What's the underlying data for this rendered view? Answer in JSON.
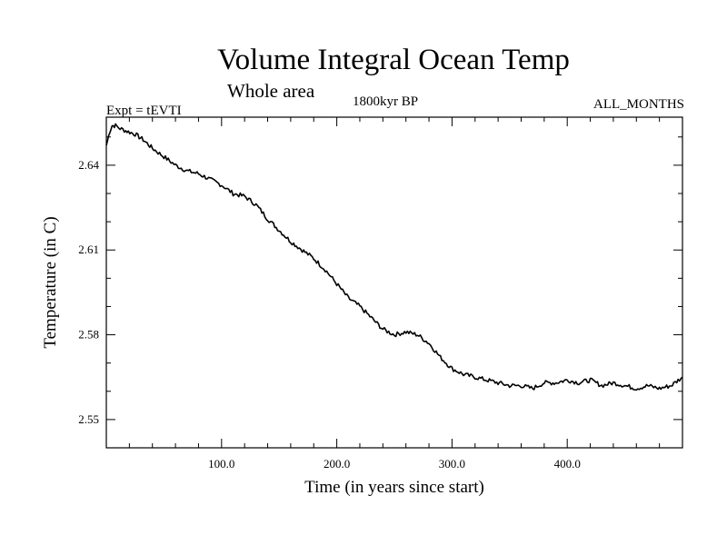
{
  "chart_data": {
    "type": "line",
    "title": "Volume Integral Ocean Temp",
    "subtitle": "Whole area",
    "experiment": "Expt = tEVTI",
    "period": "1800kyr BP",
    "months": "ALL_MONTHS",
    "xlabel": "Time (in years since start)",
    "ylabel": "Temperature (in C)",
    "xlim": [
      0,
      500
    ],
    "ylim": [
      2.54,
      2.657
    ],
    "xticks": [
      100,
      200,
      300,
      400
    ],
    "xtick_labels": [
      "100.0",
      "200.0",
      "300.0",
      "400.0"
    ],
    "yticks": [
      2.55,
      2.58,
      2.61,
      2.64
    ],
    "ytick_labels": [
      "2.55",
      "2.58",
      "2.61",
      "2.64"
    ],
    "series": [
      {
        "name": "Volume Integral Ocean Temp",
        "x": [
          0,
          3,
          5,
          8,
          12,
          18,
          25,
          32,
          40,
          50,
          60,
          70,
          80,
          90,
          100,
          110,
          120,
          130,
          140,
          150,
          160,
          170,
          180,
          190,
          200,
          210,
          220,
          230,
          240,
          250,
          260,
          270,
          280,
          290,
          300,
          310,
          320,
          330,
          340,
          350,
          360,
          370,
          380,
          390,
          400,
          410,
          420,
          430,
          440,
          450,
          460,
          470,
          480,
          490,
          500
        ],
        "y": [
          2.647,
          2.652,
          2.654,
          2.654,
          2.653,
          2.652,
          2.651,
          2.649,
          2.646,
          2.643,
          2.64,
          2.638,
          2.637,
          2.635,
          2.633,
          2.63,
          2.629,
          2.626,
          2.621,
          2.617,
          2.613,
          2.61,
          2.607,
          2.603,
          2.598,
          2.593,
          2.59,
          2.586,
          2.582,
          2.58,
          2.581,
          2.58,
          2.577,
          2.572,
          2.568,
          2.566,
          2.565,
          2.564,
          2.563,
          2.562,
          2.562,
          2.561,
          2.563,
          2.563,
          2.564,
          2.563,
          2.564,
          2.562,
          2.563,
          2.562,
          2.561,
          2.562,
          2.561,
          2.562,
          2.565
        ]
      }
    ]
  }
}
